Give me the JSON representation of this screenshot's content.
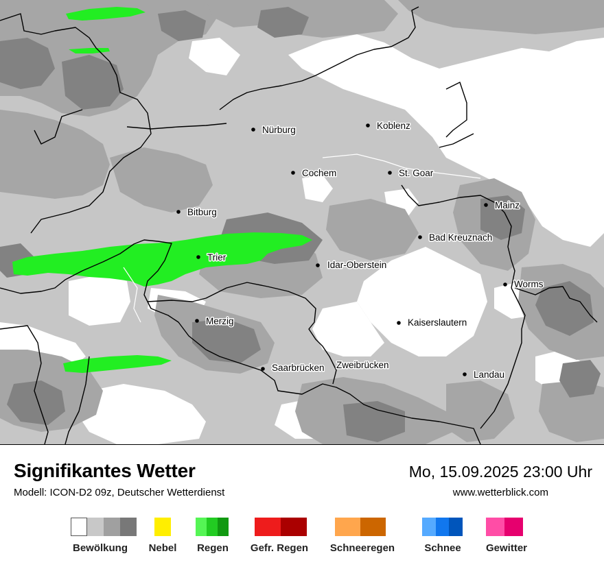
{
  "title": "Signifikantes Wetter",
  "model": "Modell: ICON-D2 09z, Deutscher Wetterdienst",
  "datetime": "Mo, 15.09.2025 23:00 Uhr",
  "website": "www.wetterblick.com",
  "cities": [
    {
      "name": "Nürburg",
      "has_dot": true
    },
    {
      "name": "Koblenz",
      "has_dot": true
    },
    {
      "name": "Cochem",
      "has_dot": true
    },
    {
      "name": "St. Goar",
      "has_dot": true
    },
    {
      "name": "Bitburg",
      "has_dot": true
    },
    {
      "name": "Mainz",
      "has_dot": true
    },
    {
      "name": "Trier",
      "has_dot": true
    },
    {
      "name": "Bad Kreuznach",
      "has_dot": true
    },
    {
      "name": "Idar-Oberstein",
      "has_dot": true
    },
    {
      "name": "Worms",
      "has_dot": true
    },
    {
      "name": "Merzig",
      "has_dot": true
    },
    {
      "name": "Kaiserslautern",
      "has_dot": true
    },
    {
      "name": "Saarbrücken",
      "has_dot": true
    },
    {
      "name": "Zweibrücken",
      "has_dot": false
    },
    {
      "name": "Landau",
      "has_dot": true
    }
  ],
  "legend": [
    {
      "label": "Bewölkung",
      "colors": [
        "#ffffff",
        "#c8c8c8",
        "#a0a0a0",
        "#787878"
      ]
    },
    {
      "label": "Nebel",
      "colors": [
        "#ffee00"
      ]
    },
    {
      "label": "Regen",
      "colors": [
        "#55f555",
        "#22cc22",
        "#119911"
      ]
    },
    {
      "label": "Gefr. Regen",
      "colors": [
        "#ee1c1c",
        "#aa0000"
      ]
    },
    {
      "label": "Schneeregen",
      "colors": [
        "#ffa64d",
        "#cc6600"
      ]
    },
    {
      "label": "Schnee",
      "colors": [
        "#55aaff",
        "#1177ee",
        "#0055bb"
      ]
    },
    {
      "label": "Gewitter",
      "colors": [
        "#ff4da6",
        "#e6006e"
      ]
    }
  ],
  "colors": {
    "cloud_light": "#c6c6c6",
    "cloud_medium": "#a6a6a6",
    "cloud_dark": "#828282",
    "rain": "#22ee22"
  }
}
